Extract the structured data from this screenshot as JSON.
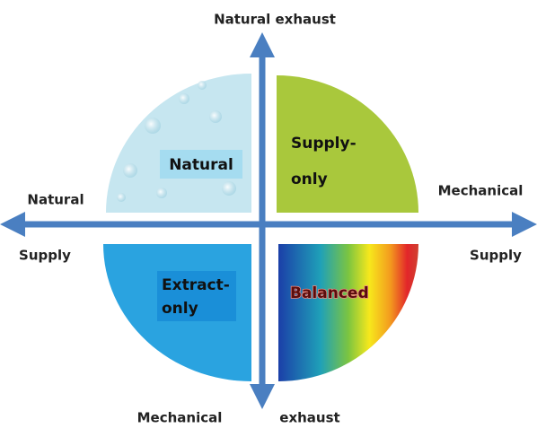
{
  "axes": {
    "top": "Natural exhaust",
    "left_upper": "Natural",
    "left_lower": "Supply",
    "right_upper": "Mechanical",
    "right_lower": "Supply",
    "bottom_left": "Mechanical",
    "bottom_right": "exhaust"
  },
  "quadrants": [
    {
      "lines": [
        "Natural"
      ]
    },
    {
      "lines": [
        "Supply-",
        "only"
      ]
    },
    {
      "lines": [
        "Extract-",
        "only"
      ]
    },
    {
      "lines": [
        "Balanced"
      ]
    }
  ]
}
